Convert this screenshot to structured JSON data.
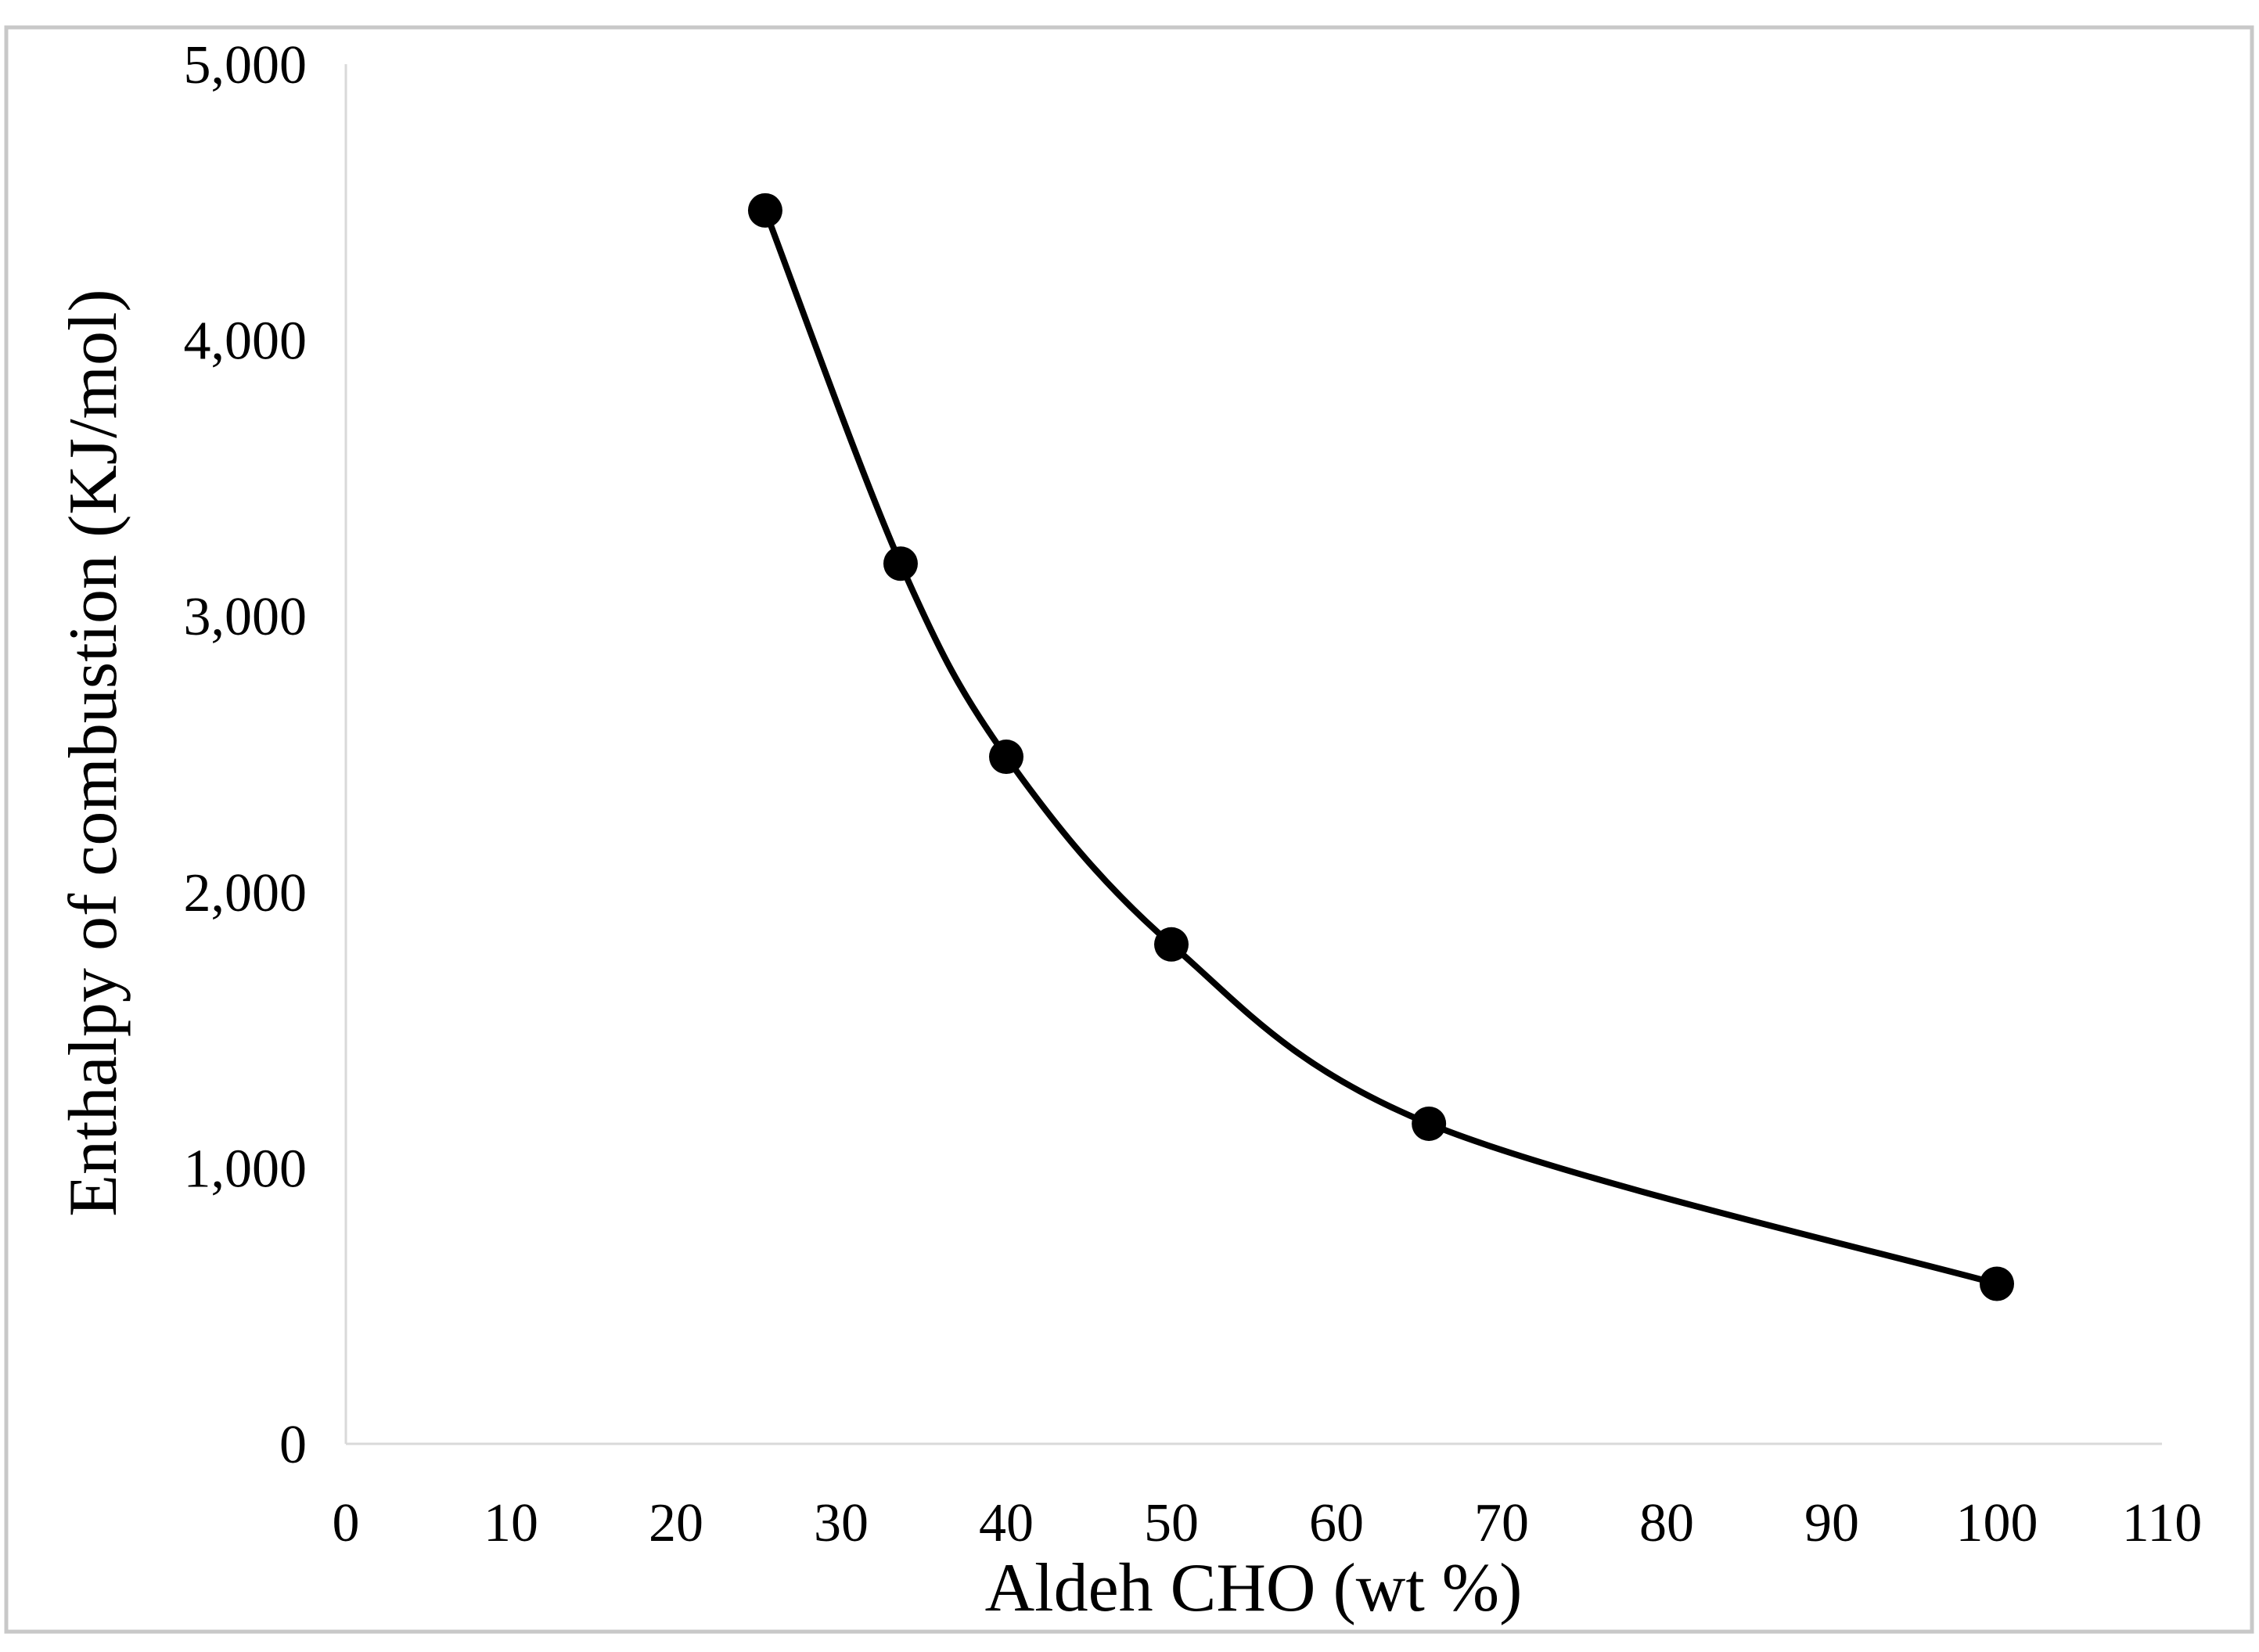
{
  "chart_data": {
    "type": "line",
    "title": "",
    "xlabel": "Aldeh CHO (wt %)",
    "ylabel": "Enthalpy of combustion (KJ/mol)",
    "xlim": [
      0,
      110
    ],
    "ylim": [
      0,
      5000
    ],
    "x_ticks": [
      0,
      10,
      20,
      30,
      40,
      50,
      60,
      70,
      80,
      90,
      100,
      110
    ],
    "y_ticks": [
      0,
      1000,
      2000,
      3000,
      4000,
      5000
    ],
    "x_tick_labels": [
      "0",
      "10",
      "20",
      "30",
      "40",
      "50",
      "60",
      "70",
      "80",
      "90",
      "100",
      "110"
    ],
    "y_tick_labels": [
      "0",
      "1,000",
      "2,000",
      "3,000",
      "4,000",
      "5,000"
    ],
    "smooth": true,
    "markers": true,
    "grid": false,
    "legend": "none",
    "line_color": "#000000",
    "series": [
      {
        "x": [
          25.4,
          33.6,
          40.0,
          50.0,
          65.6,
          100.0
        ],
        "y": [
          4470,
          3190,
          2490,
          1810,
          1160,
          580
        ]
      }
    ]
  }
}
